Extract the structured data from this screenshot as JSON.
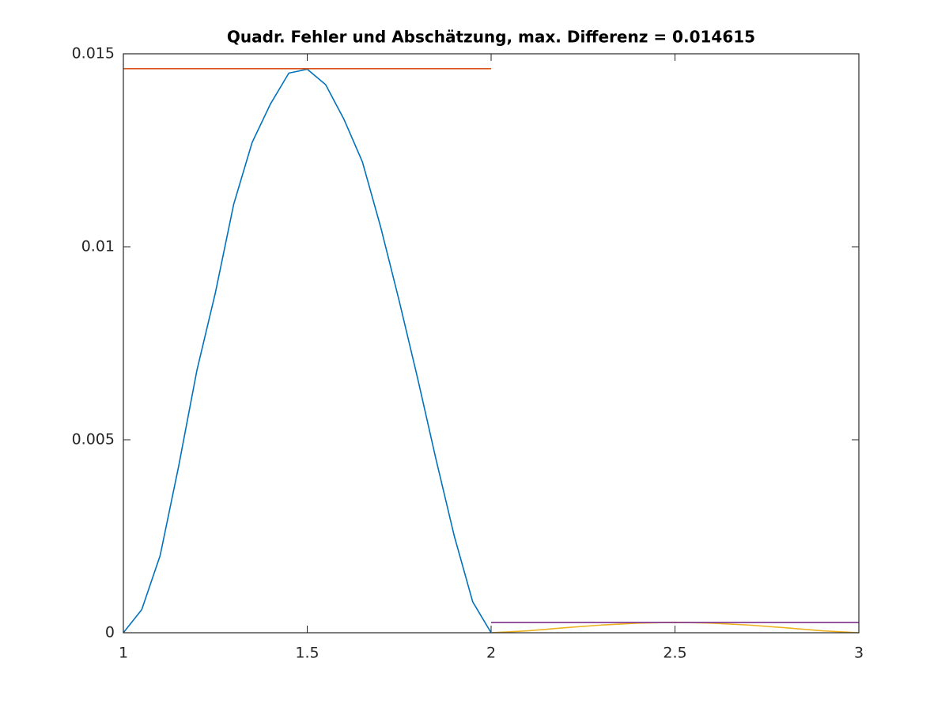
{
  "chart_data": {
    "type": "line",
    "title": "Quadr. Fehler und Abschätzung, max. Differenz = 0.014615",
    "xlim": [
      1,
      3
    ],
    "xticks": [
      1,
      1.5,
      2,
      2.5,
      3
    ],
    "ylim": [
      0,
      0.015
    ],
    "yticks": [
      0,
      0.005,
      0.01,
      0.015
    ],
    "grid": false,
    "series": [
      {
        "color": "#0072bd",
        "x": [
          1,
          1.05,
          1.1,
          1.15,
          1.2,
          1.25,
          1.3,
          1.35,
          1.4,
          1.45,
          1.5,
          1.55,
          1.6,
          1.65,
          1.7,
          1.75,
          1.8,
          1.85,
          1.9,
          1.95,
          2
        ],
        "values": [
          0,
          0.0006,
          0.002,
          0.0043,
          0.0068,
          0.0088,
          0.0111,
          0.0127,
          0.0137,
          0.0145,
          0.0146,
          0.0142,
          0.0133,
          0.0122,
          0.0105,
          0.0086,
          0.0066,
          0.0045,
          0.0025,
          0.0008,
          0
        ]
      },
      {
        "color": "#d95319",
        "x": [
          1,
          2
        ],
        "values": [
          0.014615,
          0.014615
        ]
      },
      {
        "color": "#edb120",
        "x": [
          2,
          2.1,
          2.2,
          2.3,
          2.4,
          2.5,
          2.6,
          2.7,
          2.8,
          2.9,
          3
        ],
        "values": [
          0,
          5e-05,
          0.00013,
          0.0002,
          0.00025,
          0.00027,
          0.00025,
          0.0002,
          0.00013,
          5e-05,
          0
        ]
      },
      {
        "color": "#7e2f8e",
        "x": [
          2,
          3
        ],
        "values": [
          0.000266,
          0.000266
        ]
      }
    ]
  }
}
